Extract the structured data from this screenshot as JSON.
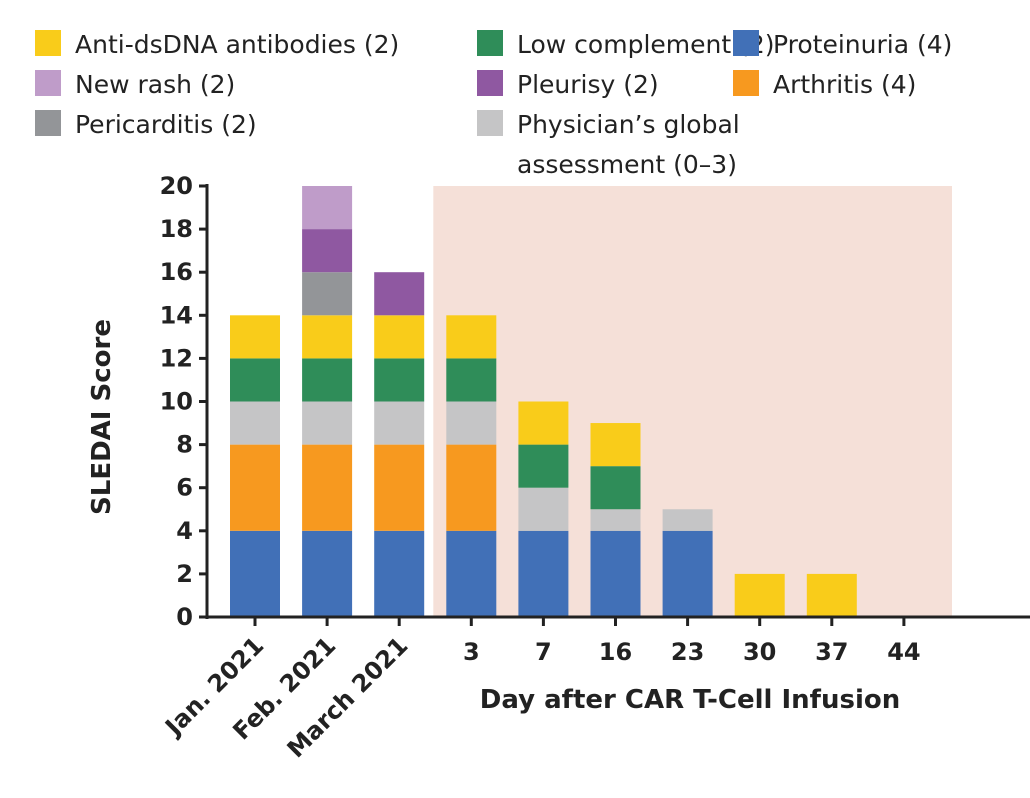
{
  "chart_data": {
    "type": "bar",
    "stacked": true,
    "title": "",
    "xlabel": "Day after CAR T-Cell Infusion",
    "ylabel": "SLEDAI Score",
    "ylim": [
      0,
      20
    ],
    "yticks": [
      "0",
      "2",
      "4",
      "6",
      "8",
      "10",
      "12",
      "14",
      "16",
      "18",
      "20"
    ],
    "categories": [
      "Jan. 2021",
      "Feb. 2021",
      "March 2021",
      "3",
      "7",
      "16",
      "23",
      "30",
      "37",
      "44"
    ],
    "shaded_region": {
      "from_category": "3",
      "to_category": "44",
      "color": "#f5e0d8"
    },
    "series": [
      {
        "name": "Proteinuria (4)",
        "color": "#4170b7",
        "values": [
          4,
          4,
          4,
          4,
          4,
          4,
          4,
          0,
          0,
          0
        ]
      },
      {
        "name": "Arthritis (4)",
        "color": "#f7991f",
        "values": [
          4,
          4,
          4,
          4,
          0,
          0,
          0,
          0,
          0,
          0
        ]
      },
      {
        "name": "Physician’s global assessment (0–3)",
        "color": "#c5c5c6",
        "values": [
          2,
          2,
          2,
          2,
          2,
          1,
          1,
          0,
          0,
          0
        ]
      },
      {
        "name": "Low complement (2)",
        "color": "#2f8d59",
        "values": [
          2,
          2,
          2,
          2,
          2,
          2,
          0,
          0,
          0,
          0
        ]
      },
      {
        "name": "Anti-dsDNA antibodies (2)",
        "color": "#f9cc1a",
        "values": [
          2,
          2,
          2,
          2,
          2,
          2,
          0,
          2,
          2,
          0
        ]
      },
      {
        "name": "Pericarditis (2)",
        "color": "#939598",
        "values": [
          0,
          2,
          0,
          0,
          0,
          0,
          0,
          0,
          0,
          0
        ]
      },
      {
        "name": "Pleurisy (2)",
        "color": "#8f58a1",
        "values": [
          0,
          2,
          2,
          0,
          0,
          0,
          0,
          0,
          0,
          0
        ]
      },
      {
        "name": "New rash (2)",
        "color": "#bf9cc9",
        "values": [
          0,
          2,
          0,
          0,
          0,
          0,
          0,
          0,
          0,
          0
        ]
      }
    ],
    "legend": {
      "placement": "top",
      "order": [
        4,
        7,
        5,
        3,
        6,
        2,
        0,
        1
      ]
    },
    "legend_second_line": {
      "Physician’s global assessment (0–3)": [
        "Physician’s global",
        "assessment (0–3)"
      ]
    }
  }
}
